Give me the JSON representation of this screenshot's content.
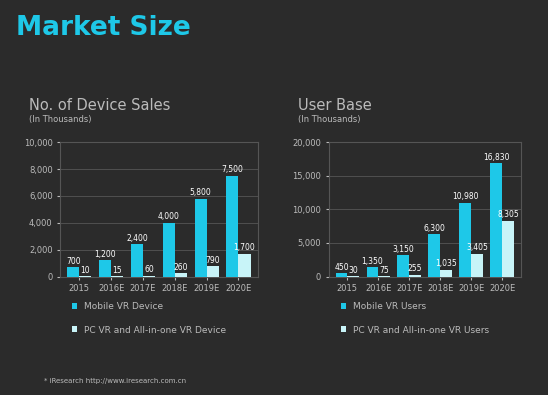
{
  "title": "Market Size",
  "source": "* iResearch http://www.iresearch.com.cn",
  "chart_data": [
    {
      "type": "bar",
      "title": "No. of Device Sales",
      "subtitle": "(In Thousands)",
      "categories": [
        "2015",
        "2016E",
        "2017E",
        "2018E",
        "2019E",
        "2020E"
      ],
      "series": [
        {
          "name": "Mobile VR Device",
          "color": "#1ec8e8",
          "values": [
            700,
            1200,
            2400,
            4000,
            5800,
            7500
          ],
          "value_labels": [
            "700",
            "1,200",
            "2,400",
            "4,000",
            "5,800",
            "7,500"
          ]
        },
        {
          "name": "PC VR and All-in-one VR Device",
          "color": "#c8f4f8",
          "values": [
            10,
            15,
            60,
            260,
            790,
            1700
          ],
          "value_labels": [
            "10",
            "15",
            "60",
            "260",
            "790",
            "1,700"
          ]
        }
      ],
      "ylim": [
        0,
        10000
      ],
      "yticks": [
        0,
        {
          "value": 2000,
          "label": "2,000"
        },
        {
          "value": 4000,
          "label": "4,000"
        },
        {
          "value": 6000,
          "label": "6,000"
        },
        {
          "value": 8000,
          "label": "8,000"
        },
        {
          "value": 10000,
          "label": "10,000"
        }
      ],
      "grid": true,
      "data_labels": true,
      "legend": "below"
    },
    {
      "type": "bar",
      "title": "User Base",
      "subtitle": "(In Thousands)",
      "categories": [
        "2015",
        "2016E",
        "2017E",
        "2018E",
        "2019E",
        "2020E"
      ],
      "series": [
        {
          "name": "Mobile VR Users",
          "color": "#1ec8e8",
          "values": [
            450,
            1350,
            3150,
            6300,
            10980,
            16830
          ],
          "value_labels": [
            "450",
            "1,350",
            "3,150",
            "6,300",
            "10,980",
            "16,830"
          ]
        },
        {
          "name": "PC VR and All-in-one VR Users",
          "color": "#c8f4f8",
          "values": [
            30,
            75,
            255,
            1035,
            3405,
            8305
          ],
          "value_labels": [
            "30",
            "75",
            "255",
            "1,035",
            "3,405",
            "8,305"
          ]
        }
      ],
      "ylim": [
        0,
        20000
      ],
      "yticks": [
        0,
        {
          "value": 5000,
          "label": "5,000"
        },
        {
          "value": 10000,
          "label": "10,000"
        },
        {
          "value": 15000,
          "label": "15,000"
        },
        {
          "value": 20000,
          "label": "20,000"
        }
      ],
      "grid": true,
      "data_labels": true,
      "legend": "below"
    }
  ]
}
